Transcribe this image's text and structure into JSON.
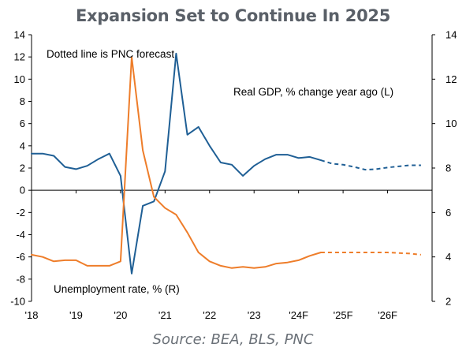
{
  "title": "Expansion Set to Continue In 2025",
  "source": "Source: BEA, BLS, PNC",
  "annotations": {
    "forecast_note": "Dotted line is PNC forecast",
    "gdp_label": "Real GDP, % change year ago (L)",
    "unemp_label": "Unemployment rate, % (R)"
  },
  "colors": {
    "gdp": "#1f5f95",
    "unemployment": "#ee7d2a",
    "axis": "#000000"
  },
  "chart_data": {
    "type": "line",
    "title": "Expansion Set to Continue In 2025",
    "x_tick_labels": [
      "'18",
      "'19",
      "'20",
      "'21",
      "'22",
      "'23",
      "'24F",
      "'25F",
      "'26F"
    ],
    "x_start_year": 2018,
    "left_axis": {
      "ylim": [
        -10,
        14
      ],
      "ticks": [
        14,
        12,
        10,
        8,
        6,
        4,
        2,
        0,
        -2,
        -4,
        -6,
        -8,
        -10
      ]
    },
    "right_axis": {
      "ylim": [
        2,
        14
      ],
      "ticks": [
        14,
        12,
        10,
        8,
        6,
        4,
        2
      ]
    },
    "grid": false,
    "series": [
      {
        "name": "Real GDP, % change year ago (L)",
        "axis": "left",
        "color": "#1f5f95",
        "actual": [
          [
            2018.0,
            3.3
          ],
          [
            2018.25,
            3.3
          ],
          [
            2018.5,
            3.1
          ],
          [
            2018.75,
            2.1
          ],
          [
            2019.0,
            1.9
          ],
          [
            2019.25,
            2.2
          ],
          [
            2019.5,
            2.8
          ],
          [
            2019.75,
            3.3
          ],
          [
            2020.0,
            1.3
          ],
          [
            2020.25,
            -7.5
          ],
          [
            2020.5,
            -1.4
          ],
          [
            2020.75,
            -1.0
          ],
          [
            2021.0,
            1.7
          ],
          [
            2021.25,
            12.3
          ],
          [
            2021.5,
            5.0
          ],
          [
            2021.75,
            5.7
          ],
          [
            2022.0,
            4.0
          ],
          [
            2022.25,
            2.5
          ],
          [
            2022.5,
            2.3
          ],
          [
            2022.75,
            1.3
          ],
          [
            2023.0,
            2.2
          ],
          [
            2023.25,
            2.8
          ],
          [
            2023.5,
            3.2
          ],
          [
            2023.75,
            3.2
          ],
          [
            2024.0,
            2.9
          ],
          [
            2024.25,
            3.0
          ],
          [
            2024.5,
            2.7
          ]
        ],
        "forecast": [
          [
            2024.5,
            2.7
          ],
          [
            2024.75,
            2.4
          ],
          [
            2025.0,
            2.3
          ],
          [
            2025.25,
            2.1
          ],
          [
            2025.5,
            1.85
          ],
          [
            2025.75,
            1.9
          ],
          [
            2026.0,
            2.05
          ],
          [
            2026.25,
            2.15
          ],
          [
            2026.5,
            2.25
          ],
          [
            2026.75,
            2.25
          ]
        ]
      },
      {
        "name": "Unemployment rate, % (R)",
        "axis": "right",
        "color": "#ee7d2a",
        "actual": [
          [
            2018.0,
            4.1
          ],
          [
            2018.25,
            4.0
          ],
          [
            2018.5,
            3.8
          ],
          [
            2018.75,
            3.85
          ],
          [
            2019.0,
            3.85
          ],
          [
            2019.25,
            3.6
          ],
          [
            2019.5,
            3.6
          ],
          [
            2019.75,
            3.6
          ],
          [
            2020.0,
            3.8
          ],
          [
            2020.25,
            13.0
          ],
          [
            2020.5,
            8.8
          ],
          [
            2020.75,
            6.7
          ],
          [
            2021.0,
            6.2
          ],
          [
            2021.25,
            5.9
          ],
          [
            2021.5,
            5.1
          ],
          [
            2021.75,
            4.2
          ],
          [
            2022.0,
            3.8
          ],
          [
            2022.25,
            3.6
          ],
          [
            2022.5,
            3.5
          ],
          [
            2022.75,
            3.55
          ],
          [
            2023.0,
            3.5
          ],
          [
            2023.25,
            3.55
          ],
          [
            2023.5,
            3.7
          ],
          [
            2023.75,
            3.75
          ],
          [
            2024.0,
            3.85
          ],
          [
            2024.25,
            4.05
          ],
          [
            2024.5,
            4.2
          ]
        ],
        "forecast": [
          [
            2024.5,
            4.2
          ],
          [
            2025.0,
            4.2
          ],
          [
            2025.5,
            4.2
          ],
          [
            2026.0,
            4.2
          ],
          [
            2026.5,
            4.15
          ],
          [
            2026.75,
            4.1
          ]
        ]
      }
    ]
  }
}
